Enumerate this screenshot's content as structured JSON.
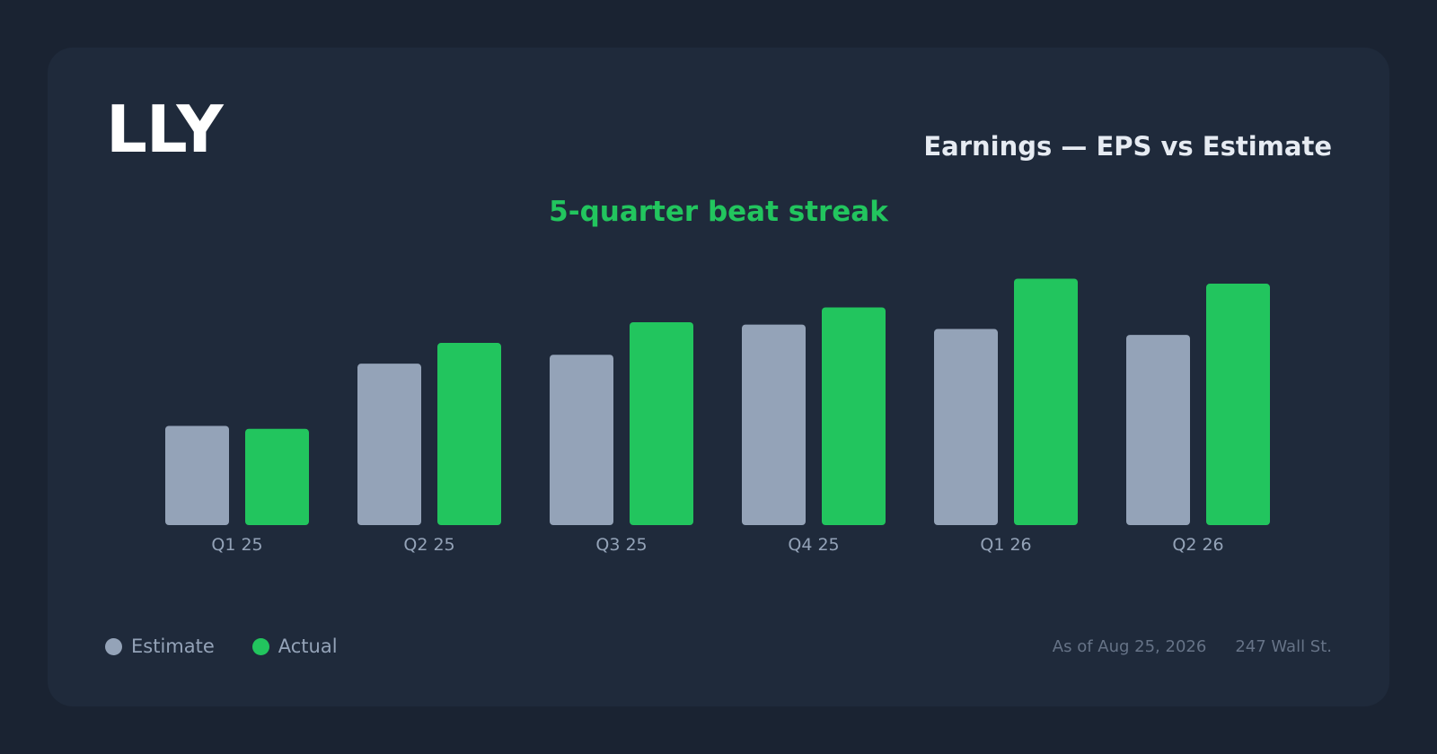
{
  "header": {
    "ticker": "LLY",
    "title": "Earnings — EPS vs Estimate",
    "subtitle": "5-quarter beat streak"
  },
  "legend": {
    "estimate_label": "Estimate",
    "actual_label": "Actual"
  },
  "footer": {
    "as_of": "As of Aug 25, 2026",
    "source": "247 Wall St."
  },
  "colors": {
    "estimate": "#94a3b8",
    "actual": "#22c55e",
    "tick_label": "#94a3b8"
  },
  "chart_data": {
    "type": "bar",
    "categories": [
      "Q1 25",
      "Q2 25",
      "Q3 25",
      "Q4 25",
      "Q1 26",
      "Q2 26"
    ],
    "series": [
      {
        "name": "Estimate",
        "values": [
          3.35,
          5.45,
          5.75,
          6.77,
          6.62,
          6.42
        ]
      },
      {
        "name": "Actual",
        "values": [
          3.25,
          6.15,
          6.85,
          7.35,
          8.32,
          8.15
        ]
      }
    ],
    "title": "Earnings — EPS vs Estimate",
    "subtitle": "5-quarter beat streak",
    "xlabel": "",
    "ylabel": "",
    "ylim": [
      0,
      10
    ],
    "grid": false,
    "legend_position": "bottom-left"
  }
}
